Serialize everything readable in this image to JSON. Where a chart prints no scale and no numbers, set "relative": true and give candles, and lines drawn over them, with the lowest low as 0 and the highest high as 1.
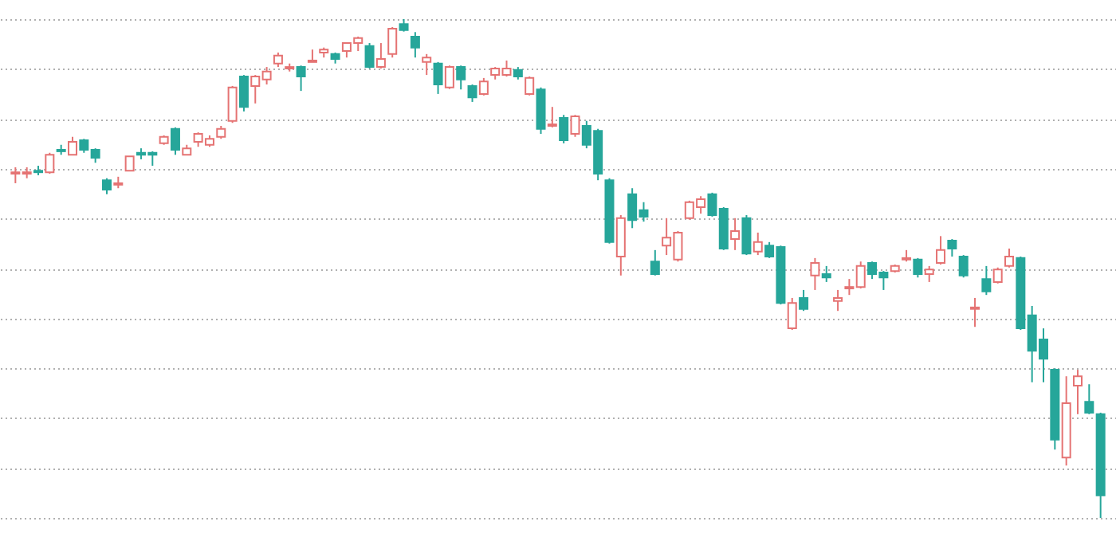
{
  "chart_data": {
    "type": "candlestick",
    "relative": true,
    "grid": "y",
    "colors": [
      "#e57373",
      "#e57373",
      "#26a69a",
      "#e57373",
      "#26a69a",
      "#e57373",
      "#26a69a",
      "#26a69a",
      "#26a69a",
      "#e57373",
      "#e57373",
      "#26a69a",
      "#26a69a",
      "#e57373",
      "#26a69a",
      "#e57373",
      "#e57373",
      "#e57373",
      "#e57373",
      "#e57373",
      "#26a69a",
      "#e57373",
      "#e57373",
      "#e57373",
      "#e57373",
      "#26a69a",
      "#e57373",
      "#e57373",
      "#26a69a",
      "#e57373",
      "#e57373",
      "#26a69a",
      "#e57373",
      "#e57373",
      "#26a69a",
      "#26a69a",
      "#e57373",
      "#26a69a",
      "#e57373",
      "#26a69a",
      "#26a69a",
      "#e57373",
      "#e57373",
      "#e57373",
      "#26a69a",
      "#e57373",
      "#26a69a",
      "#e57373",
      "#26a69a",
      "#e57373",
      "#26a69a",
      "#26a69a",
      "#26a69a",
      "#e57373",
      "#26a69a",
      "#26a69a",
      "#26a69a",
      "#e57373",
      "#e57373",
      "#e57373",
      "#e57373",
      "#26a69a",
      "#26a69a",
      "#e57373",
      "#26a69a",
      "#e57373",
      "#26a69a",
      "#26a69a",
      "#e57373",
      "#26a69a",
      "#e57373",
      "#26a69a",
      "#e57373",
      "#e57373",
      "#e57373",
      "#26a69a",
      "#26a69a",
      "#e57373",
      "#e57373",
      "#26a69a",
      "#e57373",
      "#e57373",
      "#26a69a",
      "#26a69a",
      "#e57373",
      "#26a69a",
      "#e57373",
      "#e57373",
      "#26a69a",
      "#26a69a",
      "#26a69a",
      "#26a69a",
      "#e57373",
      "#e57373",
      "#26a69a",
      "#26a69a"
    ],
    "categories": [
      null,
      null,
      null,
      null,
      null,
      null,
      null,
      null,
      null,
      null,
      null,
      null,
      null,
      null,
      null,
      null,
      null,
      null,
      null,
      null,
      null,
      null,
      null,
      null,
      null,
      null,
      null,
      null,
      null,
      null,
      null,
      null,
      null,
      null,
      null,
      null,
      null,
      null,
      null,
      null,
      null,
      null,
      null,
      null,
      null,
      null,
      null,
      null,
      null,
      null,
      null,
      null,
      null,
      null,
      null,
      null,
      null,
      null,
      null,
      null,
      null,
      null,
      null,
      null,
      null,
      null,
      null,
      null,
      null,
      null,
      null,
      null,
      null,
      null,
      null,
      null,
      null,
      null,
      null,
      null,
      null,
      null,
      null,
      null,
      null,
      null,
      null,
      null,
      null,
      null,
      null,
      null,
      null,
      null,
      null,
      null
    ],
    "ohlc": [
      [
        0.69,
        0.703,
        0.671,
        0.693
      ],
      [
        0.69,
        0.703,
        0.681,
        0.693
      ],
      [
        0.696,
        0.706,
        0.687,
        0.693
      ],
      [
        0.693,
        0.732,
        0.69,
        0.728
      ],
      [
        0.738,
        0.748,
        0.728,
        0.735
      ],
      [
        0.728,
        0.764,
        0.728,
        0.754
      ],
      [
        0.757,
        0.76,
        0.732,
        0.738
      ],
      [
        0.738,
        0.741,
        0.712,
        0.722
      ],
      [
        0.677,
        0.681,
        0.649,
        0.658
      ],
      [
        0.668,
        0.684,
        0.661,
        0.671
      ],
      [
        0.696,
        0.725,
        0.696,
        0.725
      ],
      [
        0.732,
        0.741,
        0.719,
        0.728
      ],
      [
        0.732,
        0.735,
        0.706,
        0.728
      ],
      [
        0.751,
        0.767,
        0.748,
        0.764
      ],
      [
        0.78,
        0.783,
        0.728,
        0.738
      ],
      [
        0.728,
        0.748,
        0.728,
        0.741
      ],
      [
        0.754,
        0.773,
        0.744,
        0.77
      ],
      [
        0.748,
        0.767,
        0.744,
        0.76
      ],
      [
        0.764,
        0.786,
        0.76,
        0.78
      ],
      [
        0.796,
        0.866,
        0.792,
        0.863
      ],
      [
        0.885,
        0.888,
        0.815,
        0.824
      ],
      [
        0.866,
        0.888,
        0.831,
        0.885
      ],
      [
        0.879,
        0.904,
        0.869,
        0.895
      ],
      [
        0.911,
        0.933,
        0.904,
        0.927
      ],
      [
        0.901,
        0.911,
        0.895,
        0.904
      ],
      [
        0.904,
        0.907,
        0.856,
        0.885
      ],
      [
        0.914,
        0.939,
        0.914,
        0.917
      ],
      [
        0.933,
        0.943,
        0.923,
        0.939
      ],
      [
        0.93,
        0.933,
        0.911,
        0.92
      ],
      [
        0.936,
        0.952,
        0.923,
        0.952
      ],
      [
        0.952,
        0.965,
        0.936,
        0.962
      ],
      [
        0.946,
        0.952,
        0.901,
        0.904
      ],
      [
        0.904,
        0.952,
        0.901,
        0.92
      ],
      [
        0.93,
        0.984,
        0.923,
        0.981
      ],
      [
        0.99,
        1,
        0.975,
        0.978
      ],
      [
        0.965,
        0.974,
        0.923,
        0.943
      ],
      [
        0.914,
        0.93,
        0.888,
        0.923
      ],
      [
        0.911,
        0.914,
        0.85,
        0.869
      ],
      [
        0.863,
        0.907,
        0.86,
        0.904
      ],
      [
        0.904,
        0.907,
        0.859,
        0.879
      ],
      [
        0.866,
        0.869,
        0.834,
        0.843
      ],
      [
        0.85,
        0.882,
        0.847,
        0.875
      ],
      [
        0.888,
        0.904,
        0.879,
        0.901
      ],
      [
        0.888,
        0.917,
        0.885,
        0.901
      ],
      [
        0.898,
        0.904,
        0.879,
        0.885
      ],
      [
        0.85,
        0.885,
        0.847,
        0.882
      ],
      [
        0.859,
        0.863,
        0.77,
        0.78
      ],
      [
        0.786,
        0.824,
        0.783,
        0.789
      ],
      [
        0.802,
        0.808,
        0.751,
        0.757
      ],
      [
        0.77,
        0.808,
        0.764,
        0.805
      ],
      [
        0.786,
        0.796,
        0.741,
        0.748
      ],
      [
        0.776,
        0.78,
        0.677,
        0.69
      ],
      [
        0.677,
        0.681,
        0.55,
        0.553
      ],
      [
        0.524,
        0.607,
        0.486,
        0.601
      ],
      [
        0.649,
        0.661,
        0.581,
        0.597
      ],
      [
        0.617,
        0.633,
        0.594,
        0.604
      ],
      [
        0.514,
        0.537,
        0.486,
        0.489
      ],
      [
        0.546,
        0.601,
        0.527,
        0.562
      ],
      [
        0.518,
        0.575,
        0.514,
        0.572
      ],
      [
        0.601,
        0.636,
        0.598,
        0.633
      ],
      [
        0.623,
        0.645,
        0.61,
        0.639
      ],
      [
        0.649,
        0.652,
        0.604,
        0.607
      ],
      [
        0.62,
        0.623,
        0.537,
        0.54
      ],
      [
        0.559,
        0.601,
        0.537,
        0.575
      ],
      [
        0.601,
        0.607,
        0.527,
        0.53
      ],
      [
        0.534,
        0.572,
        0.527,
        0.553
      ],
      [
        0.546,
        0.553,
        0.521,
        0.524
      ],
      [
        0.543,
        0.546,
        0.428,
        0.431
      ],
      [
        0.38,
        0.441,
        0.377,
        0.431
      ],
      [
        0.441,
        0.457,
        0.415,
        0.419
      ],
      [
        0.486,
        0.521,
        0.457,
        0.511
      ],
      [
        0.489,
        0.505,
        0.473,
        0.482
      ],
      [
        0.435,
        0.457,
        0.415,
        0.441
      ],
      [
        0.46,
        0.479,
        0.447,
        0.463
      ],
      [
        0.463,
        0.514,
        0.46,
        0.505
      ],
      [
        0.511,
        0.514,
        0.479,
        0.489
      ],
      [
        0.492,
        0.495,
        0.457,
        0.482
      ],
      [
        0.495,
        0.508,
        0.492,
        0.505
      ],
      [
        0.518,
        0.537,
        0.514,
        0.521
      ],
      [
        0.518,
        0.521,
        0.482,
        0.489
      ],
      [
        0.489,
        0.505,
        0.473,
        0.498
      ],
      [
        0.511,
        0.565,
        0.508,
        0.537
      ],
      [
        0.556,
        0.559,
        0.524,
        0.54
      ],
      [
        0.524,
        0.527,
        0.482,
        0.486
      ],
      [
        0.419,
        0.441,
        0.383,
        0.422
      ],
      [
        0.479,
        0.505,
        0.447,
        0.454
      ],
      [
        0.473,
        0.502,
        0.47,
        0.498
      ],
      [
        0.505,
        0.54,
        0.502,
        0.524
      ],
      [
        0.521,
        0.524,
        0.377,
        0.38
      ],
      [
        0.406,
        0.425,
        0.272,
        0.335
      ],
      [
        0.358,
        0.38,
        0.272,
        0.319
      ],
      [
        0.297,
        0.3,
        0.137,
        0.157
      ],
      [
        0.121,
        0.284,
        0.105,
        0.23
      ],
      [
        0.265,
        0.297,
        0.208,
        0.284
      ],
      [
        0.233,
        0.268,
        0.208,
        0.211
      ],
      [
        0.208,
        0.211,
        0,
        0.045
      ]
    ]
  }
}
